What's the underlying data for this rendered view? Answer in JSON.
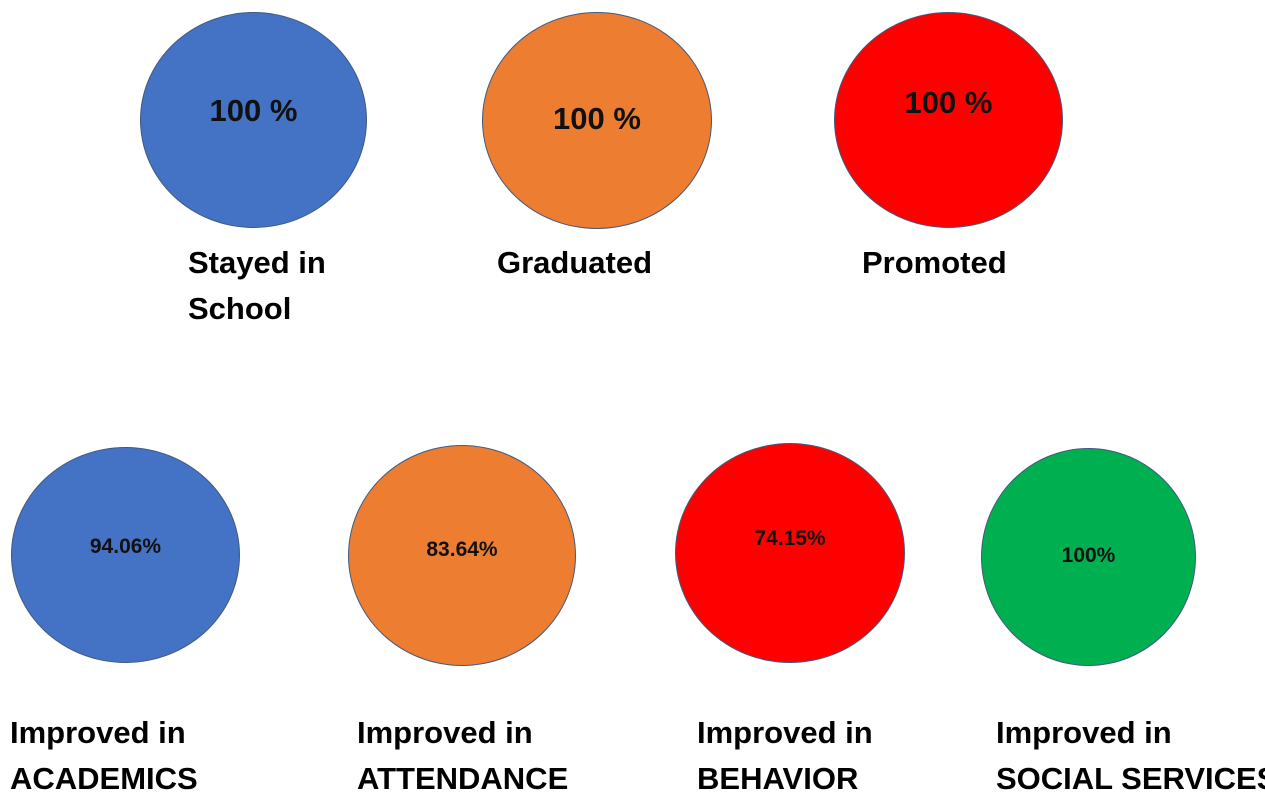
{
  "colors": {
    "blue": "#4472c4",
    "orange": "#ed7d31",
    "red": "#ff0000",
    "green": "#00b050"
  },
  "outcomes": [
    {
      "value": "100 %",
      "label_line1": "Stayed in",
      "label_line2": "School",
      "color": "blue"
    },
    {
      "value": "100 %",
      "label_line1": "Graduated",
      "label_line2": "",
      "color": "orange"
    },
    {
      "value": "100 %",
      "label_line1": "Promoted",
      "label_line2": "",
      "color": "red"
    }
  ],
  "improvements": [
    {
      "value": "94.06%",
      "label_line1": "Improved in",
      "label_line2": "ACADEMICS",
      "color": "blue"
    },
    {
      "value": "83.64%",
      "label_line1": "Improved in",
      "label_line2": "ATTENDANCE",
      "color": "orange"
    },
    {
      "value": "74.15%",
      "label_line1": "Improved in",
      "label_line2": "BEHAVIOR",
      "color": "red"
    },
    {
      "value": "100%",
      "label_line1": "Improved in",
      "label_line2": "SOCIAL SERVICES",
      "color": "green"
    }
  ]
}
